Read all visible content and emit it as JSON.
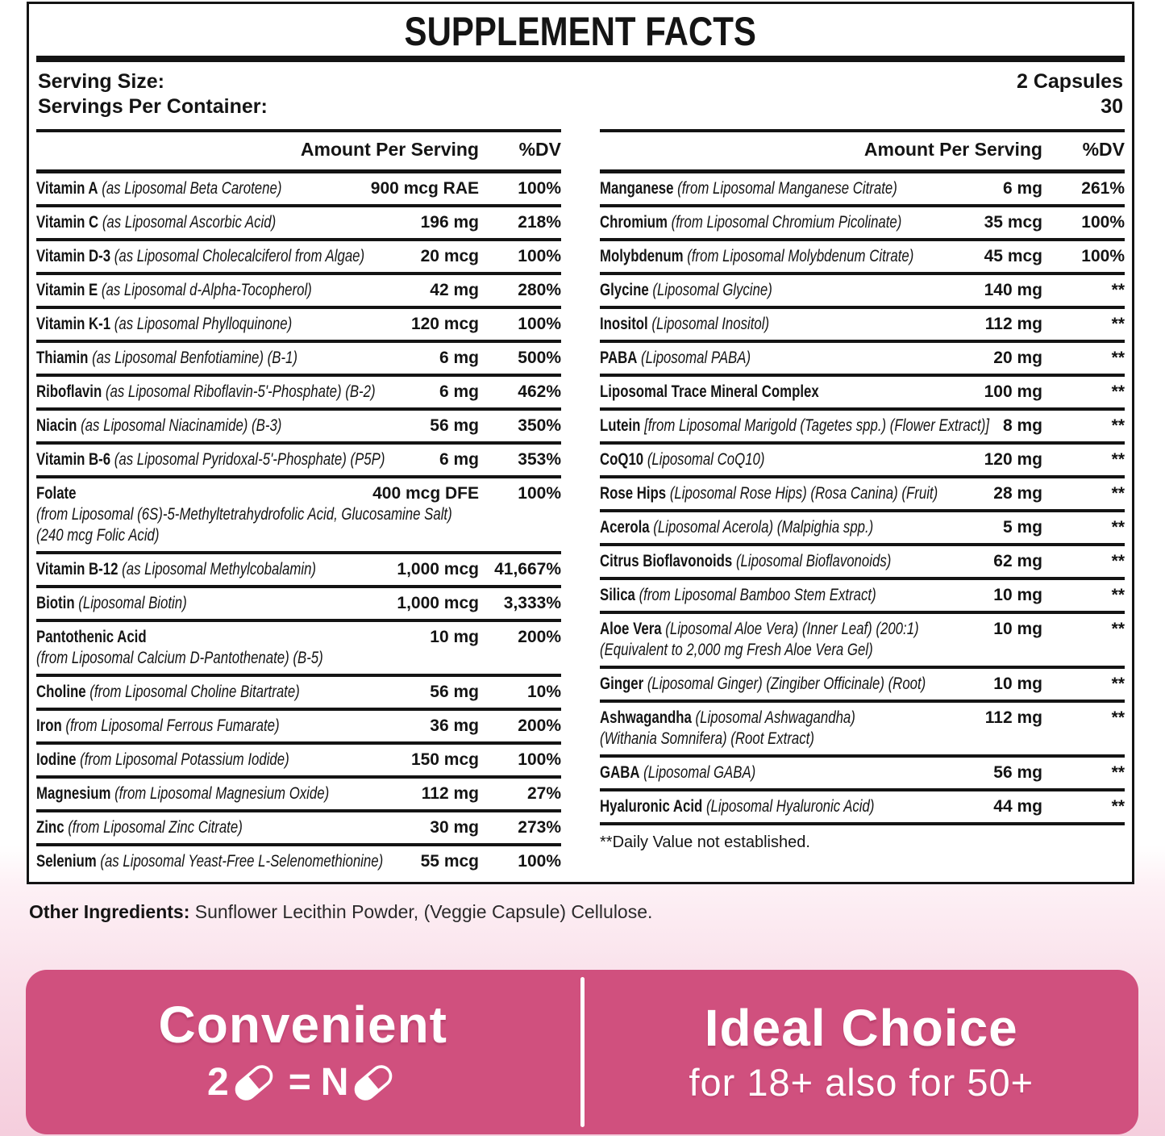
{
  "title": "SUPPLEMENT FACTS",
  "serving": {
    "size_label": "Serving Size:",
    "size_value": "2 Capsules",
    "container_label": "Servings Per Container:",
    "container_value": "30"
  },
  "table_header": {
    "amount": "Amount Per Serving",
    "dv": "%DV"
  },
  "columns": [
    {
      "rows": [
        {
          "name": "Vitamin A",
          "desc": "(as Liposomal Beta Carotene)",
          "amount": "900 mcg RAE",
          "dv": "100%"
        },
        {
          "name": "Vitamin C",
          "desc": "(as Liposomal Ascorbic Acid)",
          "amount": "196 mg",
          "dv": "218%"
        },
        {
          "name": "Vitamin D-3",
          "desc": "(as Liposomal Cholecalciferol from Algae)",
          "amount": "20 mcg",
          "dv": "100%"
        },
        {
          "name": "Vitamin E",
          "desc": "(as Liposomal d-Alpha-Tocopherol)",
          "amount": "42 mg",
          "dv": "280%"
        },
        {
          "name": "Vitamin K-1",
          "desc": "(as Liposomal Phylloquinone)",
          "amount": "120 mcg",
          "dv": "100%"
        },
        {
          "name": "Thiamin",
          "desc": "(as Liposomal Benfotiamine) (B-1)",
          "amount": "6 mg",
          "dv": "500%"
        },
        {
          "name": "Riboflavin",
          "desc": "(as Liposomal Riboflavin-5'-Phosphate) (B-2)",
          "amount": "6 mg",
          "dv": "462%"
        },
        {
          "name": "Niacin",
          "desc": "(as Liposomal Niacinamide) (B-3)",
          "amount": "56 mg",
          "dv": "350%"
        },
        {
          "name": "Vitamin B-6",
          "desc": "(as Liposomal Pyridoxal-5'-Phosphate) (P5P)",
          "amount": "6 mg",
          "dv": "353%"
        },
        {
          "name": "Folate",
          "desc": "",
          "amount": "400 mcg DFE",
          "dv": "100%",
          "sub": [
            "(from Liposomal (6S)-5-Methyltetrahydrofolic Acid, Glucosamine Salt)",
            "(240 mcg Folic Acid)"
          ]
        },
        {
          "name": "Vitamin B-12",
          "desc": "(as Liposomal Methylcobalamin)",
          "amount": "1,000 mcg",
          "dv": "41,667%"
        },
        {
          "name": "Biotin",
          "desc": "(Liposomal Biotin)",
          "amount": "1,000 mcg",
          "dv": "3,333%"
        },
        {
          "name": "Pantothenic Acid",
          "desc": "",
          "amount": "10 mg",
          "dv": "200%",
          "sub": [
            "(from Liposomal Calcium D-Pantothenate) (B-5)"
          ]
        },
        {
          "name": "Choline",
          "desc": "(from Liposomal Choline Bitartrate)",
          "amount": "56 mg",
          "dv": "10%"
        },
        {
          "name": "Iron",
          "desc": "(from Liposomal Ferrous Fumarate)",
          "amount": "36 mg",
          "dv": "200%"
        },
        {
          "name": "Iodine",
          "desc": "(from Liposomal Potassium Iodide)",
          "amount": "150 mcg",
          "dv": "100%"
        },
        {
          "name": "Magnesium",
          "desc": "(from Liposomal Magnesium Oxide)",
          "amount": "112 mg",
          "dv": "27%"
        },
        {
          "name": "Zinc",
          "desc": "(from Liposomal Zinc Citrate)",
          "amount": "30 mg",
          "dv": "273%"
        },
        {
          "name": "Selenium",
          "desc": "(as Liposomal Yeast-Free L-Selenomethionine)",
          "amount": "55 mcg",
          "dv": "100%"
        }
      ],
      "hide_last_border": true
    },
    {
      "rows": [
        {
          "name": "Manganese",
          "desc": "(from Liposomal Manganese Citrate)",
          "amount": "6 mg",
          "dv": "261%"
        },
        {
          "name": "Chromium",
          "desc": "(from Liposomal Chromium Picolinate)",
          "amount": "35 mcg",
          "dv": "100%"
        },
        {
          "name": "Molybdenum",
          "desc": "(from Liposomal Molybdenum Citrate)",
          "amount": "45 mcg",
          "dv": "100%"
        },
        {
          "name": "Glycine",
          "desc": "(Liposomal Glycine)",
          "amount": "140 mg",
          "dv": "**"
        },
        {
          "name": "Inositol",
          "desc": "(Liposomal Inositol)",
          "amount": "112 mg",
          "dv": "**"
        },
        {
          "name": "PABA",
          "desc": "(Liposomal PABA)",
          "amount": "20 mg",
          "dv": "**"
        },
        {
          "name": "Liposomal Trace Mineral Complex",
          "desc": "",
          "amount": "100 mg",
          "dv": "**"
        },
        {
          "name": "Lutein",
          "desc": "[from Liposomal Marigold (Tagetes spp.) (Flower Extract)]",
          "amount": "8 mg",
          "dv": "**"
        },
        {
          "name": "CoQ10",
          "desc": "(Liposomal CoQ10)",
          "amount": "120 mg",
          "dv": "**"
        },
        {
          "name": "Rose Hips",
          "desc": "(Liposomal Rose Hips) (Rosa Canina) (Fruit)",
          "amount": "28 mg",
          "dv": "**"
        },
        {
          "name": "Acerola",
          "desc": "(Liposomal Acerola) (Malpighia spp.)",
          "amount": "5 mg",
          "dv": "**"
        },
        {
          "name": "Citrus Bioflavonoids",
          "desc": "(Liposomal Bioflavonoids)",
          "amount": "62 mg",
          "dv": "**"
        },
        {
          "name": "Silica",
          "desc": "(from Liposomal Bamboo Stem Extract)",
          "amount": "10 mg",
          "dv": "**"
        },
        {
          "name": "Aloe Vera",
          "desc": "(Liposomal Aloe Vera) (Inner Leaf) (200:1)",
          "amount": "10 mg",
          "dv": "**",
          "sub": [
            "(Equivalent to 2,000 mg Fresh Aloe Vera Gel)"
          ]
        },
        {
          "name": "Ginger",
          "desc": "(Liposomal Ginger) (Zingiber Officinale) (Root)",
          "amount": "10 mg",
          "dv": "**"
        },
        {
          "name": "Ashwagandha",
          "desc": "(Liposomal Ashwagandha)",
          "amount": "112 mg",
          "dv": "**",
          "sub": [
            "(Withania Somnifera) (Root Extract)"
          ]
        },
        {
          "name": "GABA",
          "desc": "(Liposomal GABA)",
          "amount": "56 mg",
          "dv": "**"
        },
        {
          "name": "Hyaluronic Acid",
          "desc": "(Liposomal Hyaluronic Acid)",
          "amount": "44 mg",
          "dv": "**"
        }
      ],
      "footnote": "**Daily Value not established."
    }
  ],
  "other_ingredients": {
    "label": "Other Ingredients:",
    "text": " Sunflower Lecithin Powder, (Veggie Capsule) Cellulose."
  },
  "banner": {
    "left": {
      "title": "Convenient",
      "formula_prefix": "2",
      "formula_equals": "=",
      "formula_n": "N"
    },
    "right": {
      "title": "Ideal Choice",
      "subtitle": "for 18+ also for 50+"
    },
    "colors": {
      "background": "#d0507e",
      "divider": "#ffffff",
      "text": "#ffffff"
    }
  },
  "colors": {
    "ink": "#141414",
    "page_bottom_pink": "#f5cedd"
  }
}
